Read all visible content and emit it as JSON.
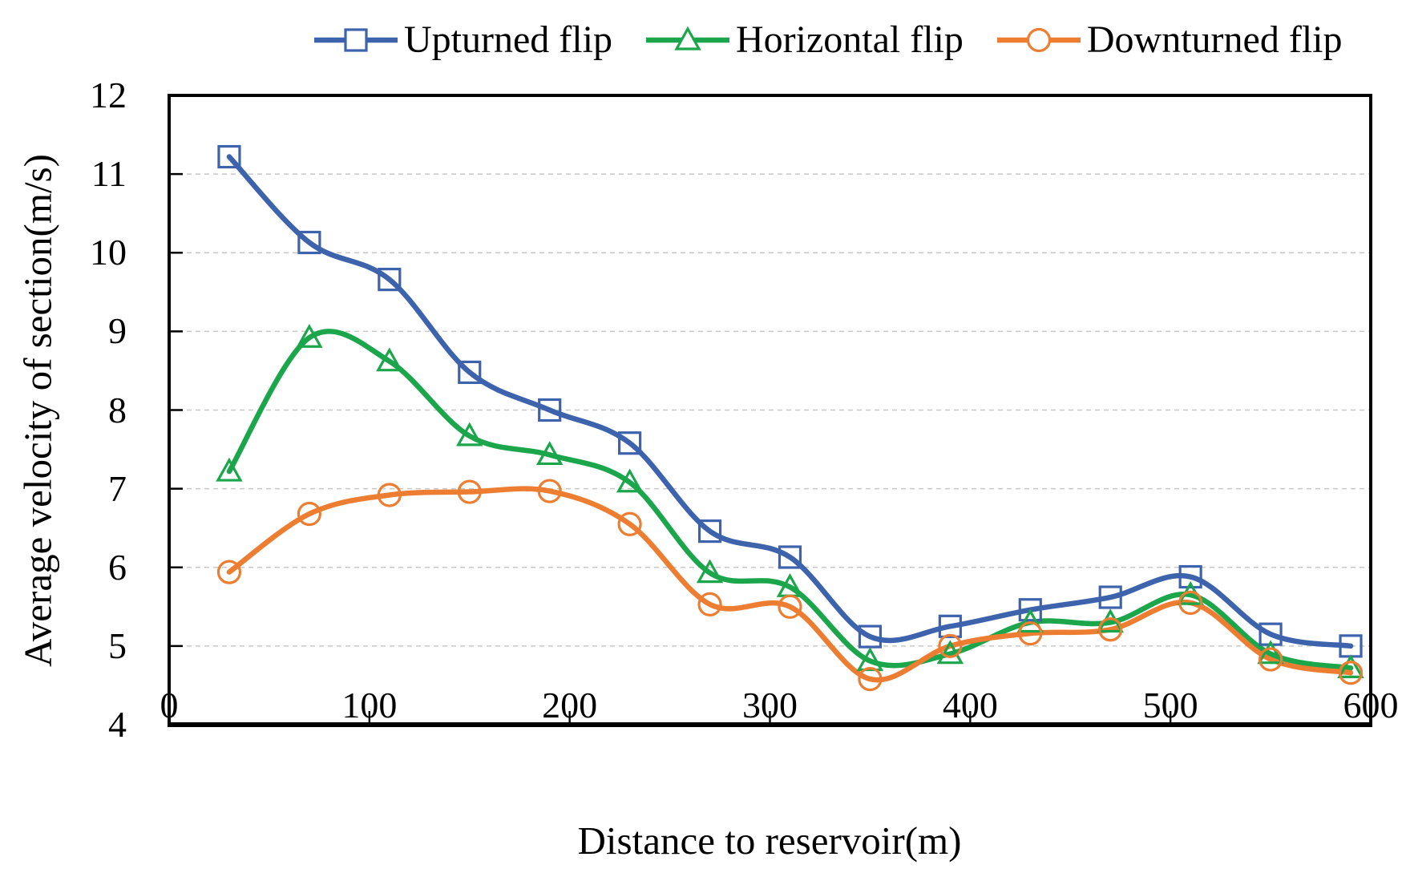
{
  "chart_data": {
    "type": "line",
    "title": "",
    "xlabel": "Distance to reservoir(m)",
    "ylabel": "Average velocity of section(m/s)",
    "x": [
      30,
      70,
      110,
      150,
      190,
      230,
      270,
      310,
      350,
      390,
      430,
      470,
      510,
      550,
      590
    ],
    "series": [
      {
        "name": "Upturned flip",
        "marker": "square",
        "color": "#3D63AD",
        "values": [
          11.22,
          10.13,
          9.66,
          8.48,
          8.0,
          7.58,
          6.46,
          6.13,
          5.12,
          5.25,
          5.46,
          5.62,
          5.88,
          5.15,
          5.0
        ]
      },
      {
        "name": "Horizontal flip",
        "marker": "triangle",
        "color": "#1CA64C",
        "values": [
          7.22,
          8.92,
          8.62,
          7.67,
          7.43,
          7.08,
          5.93,
          5.75,
          4.81,
          4.9,
          5.3,
          5.3,
          5.65,
          4.9,
          4.72
        ]
      },
      {
        "name": "Downturned flip",
        "marker": "circle",
        "color": "#ED7D31",
        "values": [
          5.94,
          6.68,
          6.92,
          6.96,
          6.97,
          6.55,
          5.53,
          5.5,
          4.58,
          5.0,
          5.16,
          5.21,
          5.55,
          4.83,
          4.66
        ]
      }
    ],
    "xlim": [
      0,
      600
    ],
    "ylim": [
      4,
      12
    ],
    "x_ticks": [
      0,
      100,
      200,
      300,
      400,
      500,
      600
    ],
    "y_ticks": [
      4,
      5,
      6,
      7,
      8,
      9,
      10,
      11,
      12
    ],
    "grid": "horizontal-dashed",
    "grid_color": "#c8c8c8",
    "axis_color": "#000000",
    "legend_position": "top"
  }
}
